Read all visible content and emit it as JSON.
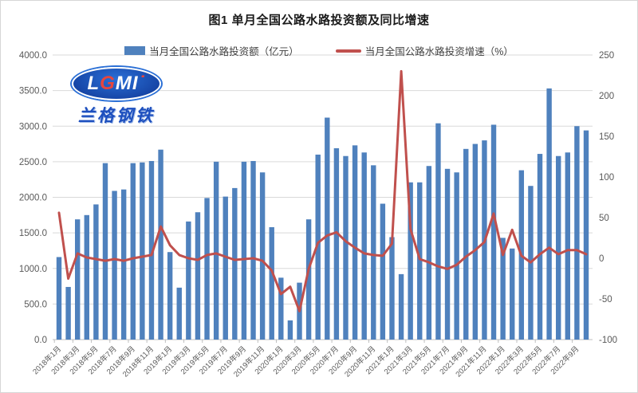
{
  "chart": {
    "title": "图1 单月全国公路水路投资额及同比增速",
    "legend": [
      {
        "label": "当月全国公路水路投资额（亿元）",
        "type": "bar",
        "color": "#4F81BD"
      },
      {
        "label": "当月全国公路水路投资增速（%）",
        "type": "line",
        "color": "#C0504D"
      }
    ]
  },
  "logo": {
    "text_l": "L",
    "text_g": "G",
    "text_mi": "MI",
    "subtext": "兰格钢铁"
  },
  "chart_data": {
    "type": "bar",
    "title": "图1 单月全国公路水路投资额及同比增速",
    "xlabel": "",
    "ylabel_left": "当月全国公路水路投资额（亿元）",
    "ylabel_right": "当月全国公路水路投资增速（%）",
    "grid": true,
    "legend_position": "top",
    "x_tick_every": 2,
    "left_axis": {
      "min": 0,
      "max": 4000,
      "step": 500,
      "labels": [
        "0.0",
        "500.0",
        "1000.0",
        "1500.0",
        "2000.0",
        "2500.0",
        "3000.0",
        "3500.0",
        "4000.0"
      ]
    },
    "right_axis": {
      "min": -100,
      "max": 250,
      "step": 50,
      "labels": [
        "-100",
        "-50",
        "0",
        "50",
        "100",
        "150",
        "200",
        "250"
      ]
    },
    "categories": [
      "2018年1月",
      "2018年2月",
      "2018年3月",
      "2018年4月",
      "2018年5月",
      "2018年6月",
      "2018年7月",
      "2018年8月",
      "2018年9月",
      "2018年10月",
      "2018年11月",
      "2018年12月",
      "2019年1月",
      "2019年2月",
      "2019年3月",
      "2019年4月",
      "2019年5月",
      "2019年6月",
      "2019年7月",
      "2019年8月",
      "2019年9月",
      "2019年10月",
      "2019年11月",
      "2019年12月",
      "2020年1月",
      "2020年2月",
      "2020年3月",
      "2020年4月",
      "2020年5月",
      "2020年6月",
      "2020年7月",
      "2020年8月",
      "2020年9月",
      "2020年10月",
      "2020年11月",
      "2020年12月",
      "2021年1月",
      "2021年2月",
      "2021年3月",
      "2021年4月",
      "2021年5月",
      "2021年6月",
      "2021年7月",
      "2021年8月",
      "2021年9月",
      "2021年10月",
      "2021年11月",
      "2021年12月",
      "2022年1月",
      "2022年2月",
      "2022年3月",
      "2022年4月",
      "2022年5月",
      "2022年6月",
      "2022年7月",
      "2022年8月",
      "2022年9月",
      "2022年10月"
    ],
    "series": [
      {
        "name": "当月全国公路水路投资额（亿元）",
        "type": "bar",
        "axis": "left",
        "color": "#4F81BD",
        "values": [
          1160,
          740,
          1690,
          1750,
          1900,
          2480,
          2090,
          2110,
          2480,
          2490,
          2510,
          2670,
          1230,
          730,
          1660,
          1790,
          1990,
          2500,
          2010,
          2130,
          2500,
          2510,
          2350,
          1580,
          870,
          270,
          800,
          1690,
          2600,
          3120,
          2690,
          2580,
          2730,
          2630,
          2450,
          1910,
          1440,
          920,
          2210,
          2210,
          2440,
          3040,
          2400,
          2350,
          2680,
          2750,
          2800,
          3020,
          1430,
          1280,
          2380,
          2160,
          2610,
          3530,
          2580,
          2630,
          3000,
          2940
        ]
      },
      {
        "name": "当月全国公路水路投资增速（%）",
        "type": "line",
        "axis": "right",
        "color": "#C0504D",
        "values": [
          56,
          -25,
          6,
          1,
          -1,
          -3,
          -1,
          -3,
          0,
          2,
          4,
          39,
          16,
          4,
          0,
          -2,
          4,
          6,
          2,
          -2,
          -1,
          0,
          -3,
          -15,
          -44,
          -35,
          -65,
          -13,
          19,
          28,
          32,
          21,
          13,
          6,
          4,
          3,
          18,
          230,
          36,
          -1,
          -5,
          -10,
          -13,
          -8,
          2,
          10,
          20,
          55,
          4,
          35,
          3,
          -5,
          5,
          13,
          5,
          10,
          10,
          5
        ]
      }
    ]
  }
}
